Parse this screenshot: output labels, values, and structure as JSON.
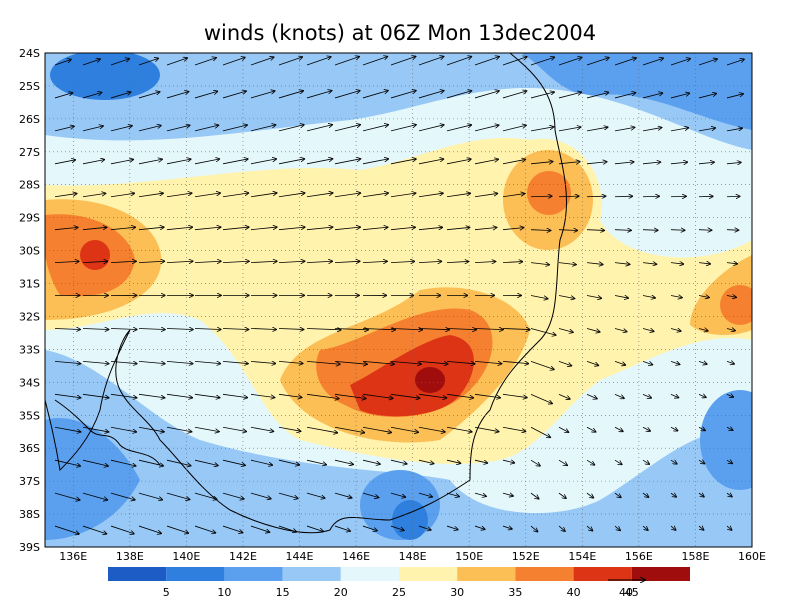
{
  "title": "winds (knots) at 06Z Mon 13dec2004",
  "lat_labels": [
    "24S",
    "25S",
    "26S",
    "27S",
    "28S",
    "29S",
    "30S",
    "31S",
    "32S",
    "33S",
    "34S",
    "35S",
    "36S",
    "37S",
    "38S",
    "39S"
  ],
  "lon_labels": [
    "136E",
    "138E",
    "140E",
    "142E",
    "144E",
    "146E",
    "148E",
    "150E",
    "152E",
    "154E",
    "156E",
    "158E",
    "160E"
  ],
  "colorbar": {
    "levels": [
      5,
      10,
      15,
      20,
      25,
      30,
      35,
      40,
      45
    ],
    "colors": [
      "#1c5cc4",
      "#2f7fdf",
      "#5ba0ee",
      "#97c8f6",
      "#e4f7fb",
      "#fff3ad",
      "#fbbf55",
      "#f5802f",
      "#dc3415",
      "#a00d0d"
    ]
  },
  "reference_vector_label": "40"
}
